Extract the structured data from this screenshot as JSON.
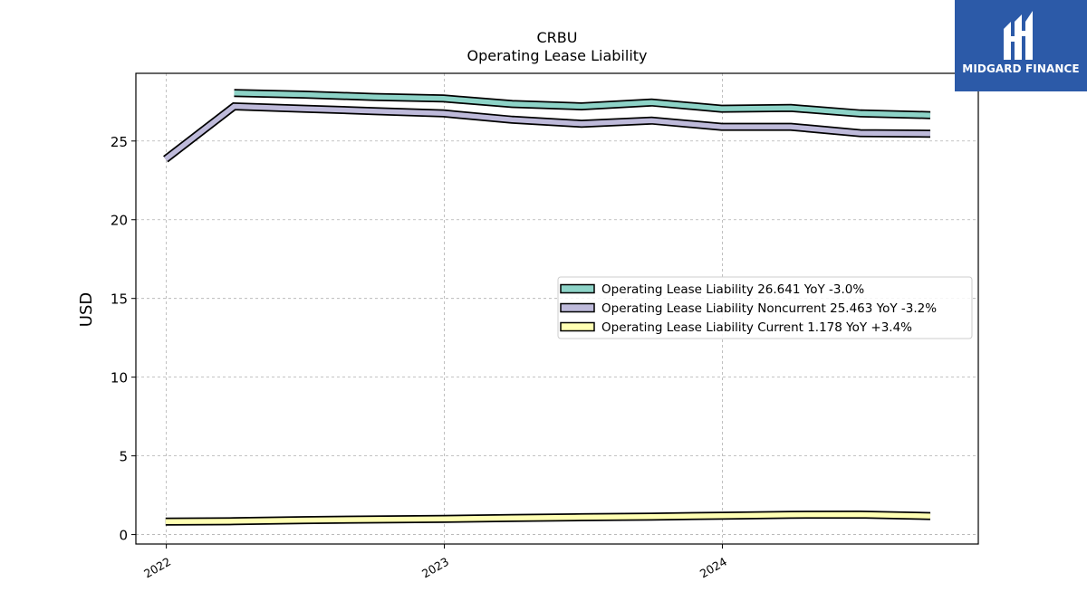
{
  "brand": {
    "name": "MIDGARD FINANCE",
    "background": "#2c5aa8",
    "icon": "midgard-logo-icon"
  },
  "chart_data": {
    "type": "line",
    "title": "CRBU",
    "subtitle": "Operating Lease Liability",
    "xlabel": "",
    "ylabel": "USD",
    "ylim": [
      -0.6,
      29.3
    ],
    "yticks": [
      0,
      5,
      10,
      15,
      20,
      25
    ],
    "x_axis_type": "date",
    "xlim": [
      "2021-11-22",
      "2024-12-02"
    ],
    "xticks": [
      {
        "date": "2022-01-01",
        "label": "2022"
      },
      {
        "date": "2023-01-01",
        "label": "2023"
      },
      {
        "date": "2024-01-01",
        "label": "2024"
      }
    ],
    "grid": true,
    "legend_position": "center-right",
    "series": [
      {
        "name": "Operating Lease Liability",
        "legend_label": "Operating Lease Liability  26.641 YoY -3.0%",
        "color": "#8dd3c7",
        "points": [
          {
            "x": "2022-03-31",
            "y": 28.05
          },
          {
            "x": "2022-06-30",
            "y": 27.95
          },
          {
            "x": "2022-09-30",
            "y": 27.8
          },
          {
            "x": "2022-12-31",
            "y": 27.7
          },
          {
            "x": "2023-03-31",
            "y": 27.35
          },
          {
            "x": "2023-06-30",
            "y": 27.2
          },
          {
            "x": "2023-09-30",
            "y": 27.45
          },
          {
            "x": "2023-12-31",
            "y": 27.05
          },
          {
            "x": "2024-03-31",
            "y": 27.1
          },
          {
            "x": "2024-06-30",
            "y": 26.75
          },
          {
            "x": "2024-09-30",
            "y": 26.641
          }
        ]
      },
      {
        "name": "Operating Lease Liability Noncurrent",
        "legend_label": "Operating Lease Liability Noncurrent  25.463 YoY -3.2%",
        "color": "#bebada",
        "points": [
          {
            "x": "2021-12-31",
            "y": 23.85
          },
          {
            "x": "2022-03-31",
            "y": 27.2
          },
          {
            "x": "2022-06-30",
            "y": 27.05
          },
          {
            "x": "2022-09-30",
            "y": 26.9
          },
          {
            "x": "2022-12-31",
            "y": 26.75
          },
          {
            "x": "2023-03-31",
            "y": 26.35
          },
          {
            "x": "2023-06-30",
            "y": 26.1
          },
          {
            "x": "2023-09-30",
            "y": 26.3
          },
          {
            "x": "2023-12-31",
            "y": 25.9
          },
          {
            "x": "2024-03-31",
            "y": 25.9
          },
          {
            "x": "2024-06-30",
            "y": 25.5
          },
          {
            "x": "2024-09-30",
            "y": 25.463
          }
        ]
      },
      {
        "name": "Operating Lease Liability Current",
        "legend_label": "Operating Lease Liability Current  1.178 YoY +3.4%",
        "color": "#ffffb3",
        "points": [
          {
            "x": "2021-12-31",
            "y": 0.82
          },
          {
            "x": "2022-03-31",
            "y": 0.85
          },
          {
            "x": "2022-06-30",
            "y": 0.92
          },
          {
            "x": "2022-09-30",
            "y": 0.96
          },
          {
            "x": "2022-12-31",
            "y": 1.0
          },
          {
            "x": "2023-03-31",
            "y": 1.05
          },
          {
            "x": "2023-06-30",
            "y": 1.1
          },
          {
            "x": "2023-09-30",
            "y": 1.14
          },
          {
            "x": "2023-12-31",
            "y": 1.2
          },
          {
            "x": "2024-03-31",
            "y": 1.26
          },
          {
            "x": "2024-06-30",
            "y": 1.27
          },
          {
            "x": "2024-09-30",
            "y": 1.178
          }
        ]
      }
    ]
  }
}
